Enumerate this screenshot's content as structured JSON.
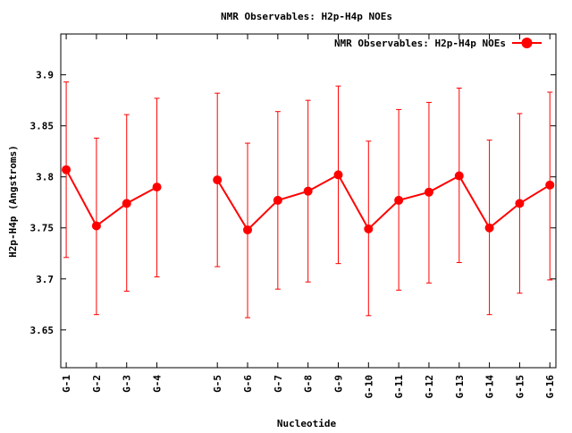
{
  "chart_data": {
    "type": "line",
    "title": "NMR Observables: H2p-H4p NOEs",
    "xlabel": "Nucleotide",
    "ylabel": "H2p-H4p (Angstroms)",
    "ylim": [
      3.613,
      3.94
    ],
    "y_ticks": [
      "3.65",
      "3.7",
      "3.75",
      "3.8",
      "3.85",
      "3.9"
    ],
    "grid": false,
    "legend_position": "top-right",
    "categories": [
      "G-1",
      "G-2",
      "G-3",
      "G-4",
      "G-5",
      "G-6",
      "G-7",
      "G-8",
      "G-9",
      "G-10",
      "G-11",
      "G-12",
      "G-13",
      "G-14",
      "G-15",
      "G-16"
    ],
    "series": [
      {
        "name": "NMR Observables: H2p-H4p NOEs",
        "color": "#ff0000",
        "segments": [
          [
            {
              "x": 1,
              "label": "G-1",
              "y": 3.807,
              "ylow": 3.721,
              "yhigh": 3.893
            },
            {
              "x": 2,
              "label": "G-2",
              "y": 3.752,
              "ylow": 3.665,
              "yhigh": 3.838
            },
            {
              "x": 3,
              "label": "G-3",
              "y": 3.774,
              "ylow": 3.688,
              "yhigh": 3.861
            },
            {
              "x": 4,
              "label": "G-4",
              "y": 3.79,
              "ylow": 3.702,
              "yhigh": 3.877
            }
          ],
          [
            {
              "x": 6,
              "label": "G-5",
              "y": 3.797,
              "ylow": 3.712,
              "yhigh": 3.882
            },
            {
              "x": 7,
              "label": "G-6",
              "y": 3.748,
              "ylow": 3.662,
              "yhigh": 3.833
            },
            {
              "x": 8,
              "label": "G-7",
              "y": 3.777,
              "ylow": 3.69,
              "yhigh": 3.864
            },
            {
              "x": 9,
              "label": "G-8",
              "y": 3.786,
              "ylow": 3.697,
              "yhigh": 3.875
            },
            {
              "x": 10,
              "label": "G-9",
              "y": 3.802,
              "ylow": 3.715,
              "yhigh": 3.889
            },
            {
              "x": 11,
              "label": "G-10",
              "y": 3.749,
              "ylow": 3.664,
              "yhigh": 3.835
            },
            {
              "x": 12,
              "label": "G-11",
              "y": 3.777,
              "ylow": 3.689,
              "yhigh": 3.866
            },
            {
              "x": 13,
              "label": "G-12",
              "y": 3.785,
              "ylow": 3.696,
              "yhigh": 3.873
            },
            {
              "x": 14,
              "label": "G-13",
              "y": 3.801,
              "ylow": 3.716,
              "yhigh": 3.887
            },
            {
              "x": 15,
              "label": "G-14",
              "y": 3.75,
              "ylow": 3.665,
              "yhigh": 3.836
            },
            {
              "x": 16,
              "label": "G-15",
              "y": 3.774,
              "ylow": 3.686,
              "yhigh": 3.862
            },
            {
              "x": 17,
              "label": "G-16",
              "y": 3.792,
              "ylow": 3.699,
              "yhigh": 3.883
            }
          ]
        ]
      }
    ]
  }
}
